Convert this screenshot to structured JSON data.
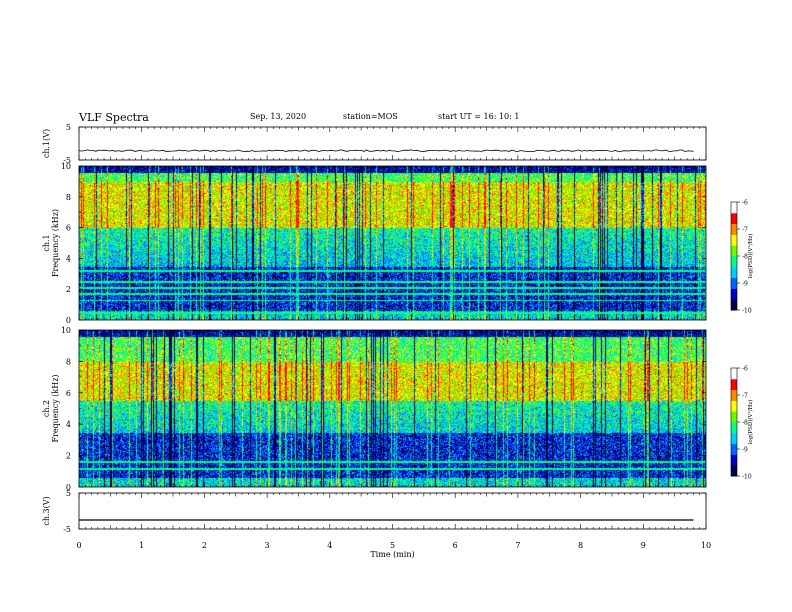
{
  "header": {
    "title": "VLF Spectra",
    "date": "Sep. 13, 2020",
    "station": "station=MOS",
    "start": "start  UT =   16: 10: 1"
  },
  "chart_data": [
    {
      "type": "line",
      "panel": "ch1_voltage",
      "ylabel": "ch.1(V)",
      "ylim": [
        -5,
        5
      ],
      "yticks": [
        5,
        -5
      ],
      "series": [
        {
          "x": [
            0,
            9.8
          ],
          "y": [
            -2.2,
            -2.2
          ]
        }
      ]
    },
    {
      "type": "heatmap",
      "panel": "ch1_spectrogram",
      "ylabel": "ch.1  Frequency (kHz)",
      "ylim": [
        0,
        10
      ],
      "yticks": [
        0,
        2,
        4,
        6,
        8,
        10
      ],
      "xlim": [
        0,
        9.8
      ],
      "colorbar": {
        "label": "log(PSD)(V²/Hz)",
        "range": [
          -10,
          -6
        ],
        "ticks": [
          -6,
          -7,
          -8,
          -9,
          -10
        ]
      },
      "intense_band_kHz": [
        6,
        9
      ],
      "horizontal_lines_kHz": [
        0.5,
        1.3,
        1.7,
        2.1,
        2.5,
        3.2
      ]
    },
    {
      "type": "heatmap",
      "panel": "ch2_spectrogram",
      "ylabel": "ch.2  Frequency (kHz)",
      "ylim": [
        0,
        10
      ],
      "yticks": [
        0,
        2,
        4,
        6,
        8,
        10
      ],
      "xlim": [
        0,
        9.8
      ],
      "colorbar": {
        "label": "log(PSD)(V²/Hz)",
        "range": [
          -10,
          -6
        ],
        "ticks": [
          -6,
          -7,
          -8,
          -9,
          -10
        ]
      },
      "intense_band_kHz": [
        5.5,
        8
      ],
      "horizontal_lines_kHz": [
        1.2,
        1.6
      ]
    },
    {
      "type": "line",
      "panel": "ch3_voltage",
      "ylabel": "ch.3(V)",
      "ylim": [
        -5,
        5
      ],
      "yticks": [
        5,
        -5
      ],
      "series": [
        {
          "x": [
            0,
            9.8
          ],
          "y": [
            -2.5,
            -2.5
          ]
        }
      ]
    }
  ],
  "xaxis": {
    "label": "Time  (min)",
    "ticks": [
      "0",
      "1",
      "2",
      "3",
      "4",
      "5",
      "6",
      "7",
      "8",
      "9",
      "10"
    ],
    "xlim": [
      0,
      10
    ]
  },
  "colormap": [
    "#000044",
    "#0000cc",
    "#0066ff",
    "#00ccff",
    "#00ff88",
    "#66ff00",
    "#ffff00",
    "#ff8800",
    "#ff0000",
    "#ffffff"
  ]
}
